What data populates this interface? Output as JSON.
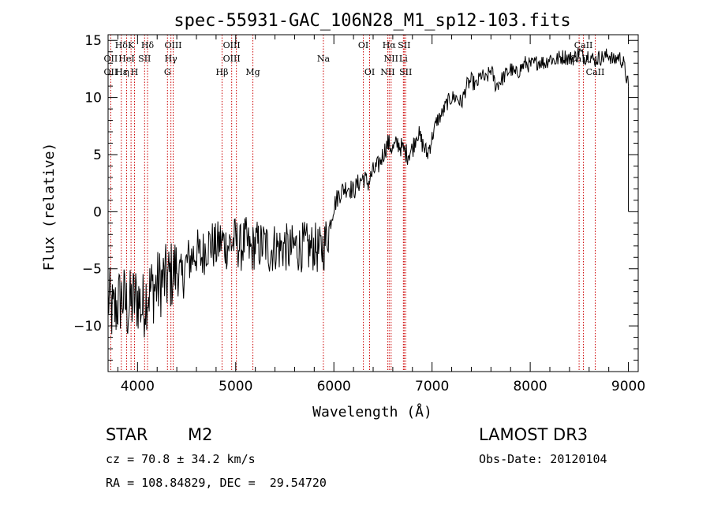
{
  "chart_data": {
    "type": "line",
    "title": "spec-55931-GAC_106N28_M1_sp12-103.fits",
    "xlabel": "Wavelength (Å)",
    "ylabel": "Flux (relative)",
    "xlim": [
      3700,
      9100
    ],
    "ylim": [
      -14,
      15.5
    ],
    "xticks": [
      4000,
      5000,
      6000,
      7000,
      8000,
      9000
    ],
    "yticks": [
      -10,
      -5,
      0,
      5,
      10,
      15
    ],
    "series": [
      {
        "name": "flux",
        "color": "#000000",
        "x": [
          3700,
          3750,
          3800,
          3850,
          3900,
          3950,
          4000,
          4050,
          4100,
          4150,
          4200,
          4250,
          4300,
          4350,
          4400,
          4450,
          4500,
          4550,
          4600,
          4650,
          4700,
          4750,
          4800,
          4850,
          4900,
          4950,
          5000,
          5050,
          5100,
          5150,
          5200,
          5250,
          5300,
          5350,
          5400,
          5450,
          5500,
          5550,
          5600,
          5650,
          5700,
          5750,
          5800,
          5850,
          5900,
          5950,
          6000,
          6050,
          6100,
          6150,
          6200,
          6250,
          6300,
          6350,
          6400,
          6450,
          6500,
          6550,
          6600,
          6650,
          6700,
          6750,
          6800,
          6850,
          6900,
          6950,
          7000,
          7050,
          7100,
          7150,
          7200,
          7250,
          7300,
          7350,
          7400,
          7450,
          7500,
          7550,
          7600,
          7650,
          7700,
          7750,
          7800,
          7850,
          7900,
          7950,
          8000,
          8050,
          8100,
          8150,
          8200,
          8250,
          8300,
          8350,
          8400,
          8450,
          8500,
          8550,
          8600,
          8650,
          8700,
          8750,
          8800,
          8850,
          8900,
          8950,
          9000
        ],
        "values": [
          -7.5,
          -9.0,
          -8.0,
          -7.5,
          -8.5,
          -7.8,
          -7.5,
          -8.5,
          -7.0,
          -6.8,
          -6.5,
          -6.0,
          -6.0,
          -5.5,
          -5.0,
          -6.0,
          -4.5,
          -4.0,
          -3.5,
          -4.0,
          -3.0,
          -2.8,
          -3.2,
          -2.5,
          -3.0,
          -2.8,
          -2.5,
          -3.2,
          -2.5,
          -3.5,
          -2.8,
          -3.0,
          -2.8,
          -3.5,
          -3.0,
          -3.2,
          -3.0,
          -3.5,
          -3.0,
          -3.2,
          -3.0,
          -3.3,
          -3.0,
          -3.5,
          -3.0,
          -1.5,
          0.5,
          1.5,
          2.0,
          2.2,
          1.8,
          2.5,
          3.0,
          2.5,
          3.5,
          4.0,
          5.0,
          6.0,
          5.5,
          6.0,
          5.5,
          5.0,
          5.5,
          7.0,
          6.0,
          5.0,
          6.5,
          8.0,
          8.5,
          9.5,
          10.0,
          10.0,
          9.5,
          11.0,
          11.5,
          11.0,
          12.0,
          11.5,
          12.5,
          11.0,
          11.5,
          12.0,
          12.5,
          12.0,
          12.5,
          13.0,
          12.8,
          13.0,
          13.2,
          13.0,
          13.5,
          13.2,
          13.5,
          13.6,
          13.4,
          13.5,
          14.0,
          13.5,
          13.8,
          13.2,
          13.5,
          13.5,
          13.8,
          13.2,
          13.6,
          13.0,
          11.0
        ]
      }
    ],
    "spectral_lines": [
      {
        "label": "Hδ",
        "x": 3835,
        "row": 1
      },
      {
        "label": "OII",
        "x": 3727,
        "row": 2
      },
      {
        "label": "OII",
        "x": 3727,
        "row": 3
      },
      {
        "label": "K",
        "x": 3934,
        "row": 1
      },
      {
        "label": "HeI",
        "x": 3889,
        "row": 2
      },
      {
        "label": "Hε",
        "x": 3835,
        "row": 3
      },
      {
        "label": "η",
        "x": 3889,
        "row": 3
      },
      {
        "label": "H",
        "x": 3969,
        "row": 3
      },
      {
        "label": "SII",
        "x": 4072,
        "row": 2
      },
      {
        "label": "Hδ",
        "x": 4102,
        "row": 1
      },
      {
        "label": "OIII",
        "x": 4363,
        "row": 1
      },
      {
        "label": "Hγ",
        "x": 4340,
        "row": 2
      },
      {
        "label": "G",
        "x": 4305,
        "row": 3
      },
      {
        "label": "OIII",
        "x": 4959,
        "row": 1
      },
      {
        "label": "OIII",
        "x": 4959,
        "row": 2
      },
      {
        "label": "Hβ",
        "x": 4861,
        "row": 3
      },
      {
        "label": "Mg",
        "x": 5175,
        "row": 3
      },
      {
        "label": "Na",
        "x": 5893,
        "row": 2
      },
      {
        "label": "OI",
        "x": 6300,
        "row": 1
      },
      {
        "label": "OI",
        "x": 6364,
        "row": 3
      },
      {
        "label": "Hα",
        "x": 6563,
        "row": 1
      },
      {
        "label": "SII",
        "x": 6716,
        "row": 1
      },
      {
        "label": "NII",
        "x": 6583,
        "row": 2
      },
      {
        "label": "Li",
        "x": 6708,
        "row": 2
      },
      {
        "label": "NII",
        "x": 6548,
        "row": 3
      },
      {
        "label": "SII",
        "x": 6731,
        "row": 3
      },
      {
        "label": "CaII",
        "x": 8542,
        "row": 1
      },
      {
        "label": "CaII",
        "x": 8498,
        "row": 2
      },
      {
        "label": "CaII",
        "x": 8662,
        "row": 3
      }
    ],
    "line_positions": [
      3727,
      3835,
      3889,
      3934,
      3969,
      4072,
      4102,
      4305,
      4340,
      4363,
      4861,
      4959,
      5007,
      5175,
      5893,
      6300,
      6364,
      6548,
      6563,
      6583,
      6708,
      6716,
      6731,
      8498,
      8542,
      8662
    ],
    "line_color": "#cc0000"
  },
  "info": {
    "class": "STAR",
    "subclass": "M2",
    "survey": "LAMOST DR3",
    "cz": "cz = 70.8 ± 34.2 km/s",
    "obs_date": "Obs-Date: 20120104",
    "radec": "RA = 108.84829, DEC =  29.54720"
  }
}
